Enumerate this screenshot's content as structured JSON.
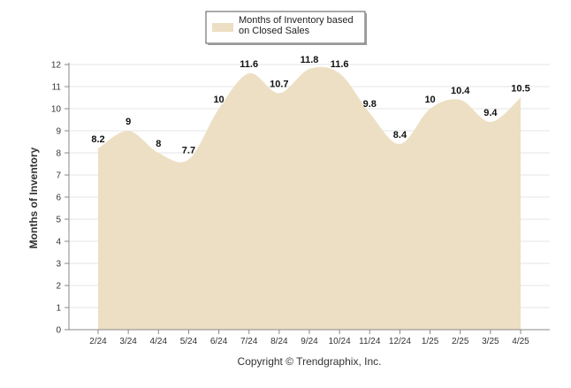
{
  "chart_data": {
    "type": "area",
    "categories": [
      "2/24",
      "3/24",
      "4/24",
      "5/24",
      "6/24",
      "7/24",
      "8/24",
      "9/24",
      "10/24",
      "11/24",
      "12/24",
      "1/25",
      "2/25",
      "3/25",
      "4/25"
    ],
    "series": [
      {
        "name": "Months of Inventory based on Closed Sales",
        "values": [
          8.2,
          9,
          8,
          7.7,
          10,
          11.6,
          10.7,
          11.8,
          11.6,
          9.8,
          8.4,
          10,
          10.4,
          9.4,
          10.5
        ],
        "color": "#EDDFC4"
      }
    ],
    "data_labels": [
      "8.2",
      "9",
      "8",
      "7.7",
      "10",
      "11.6",
      "10.7",
      "11.8",
      "11.6",
      "9.8",
      "8.4",
      "10",
      "10.4",
      "9.4",
      "10.5"
    ],
    "legend": {
      "line1": "Months of Inventory based",
      "line2": "on Closed Sales",
      "position": "top-center"
    },
    "xlabel": "",
    "ylabel": "Months of Inventory",
    "ylim": [
      0,
      12
    ],
    "yticks": [
      "0",
      "1",
      "2",
      "3",
      "4",
      "5",
      "6",
      "7",
      "8",
      "9",
      "10",
      "11",
      "12"
    ],
    "grid": true,
    "credit": "Copyright © Trendgraphix, Inc."
  }
}
